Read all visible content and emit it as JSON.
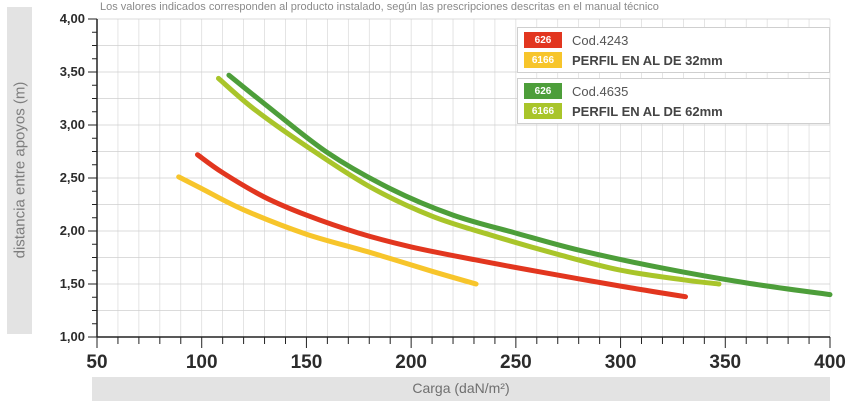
{
  "note": "Los valores indicados corresponden al producto instalado, según las prescripciones descritas en el manual técnico",
  "legend": [
    {
      "code": "Cod.4243",
      "profile": "PERFIL EN AL DE 32mm",
      "swatch_top": {
        "text": "626",
        "color": "#e2361f"
      },
      "swatch_bottom": {
        "text": "6166",
        "color": "#f7c52b"
      }
    },
    {
      "code": "Cod.4635",
      "profile": "PERFIL EN AL DE 62mm",
      "swatch_top": {
        "text": "626",
        "color": "#4d9e3a"
      },
      "swatch_bottom": {
        "text": "6166",
        "color": "#a9c52a"
      }
    }
  ],
  "chart_data": {
    "type": "line",
    "xlabel": "Carga (daN/m²)",
    "ylabel": "distancia entre apoyos (m)",
    "xlim": [
      50,
      400
    ],
    "ylim": [
      1.0,
      4.0
    ],
    "x_ticks": [
      "50",
      "100",
      "150",
      "200",
      "250",
      "300",
      "350",
      "400"
    ],
    "x_tick_values": [
      50,
      100,
      150,
      200,
      250,
      300,
      350,
      400
    ],
    "y_ticks": [
      "1,00",
      "1,50",
      "2,00",
      "2,50",
      "3,00",
      "3,50",
      "4,00"
    ],
    "y_tick_values": [
      1.0,
      1.5,
      2.0,
      2.5,
      3.0,
      3.5,
      4.0
    ],
    "grid": true,
    "legend_position": "top-right",
    "series": [
      {
        "color": "#e2361f",
        "x": [
          98,
          110,
          130,
          150,
          175,
          200,
          230,
          260,
          300,
          331
        ],
        "y": [
          2.72,
          2.55,
          2.32,
          2.15,
          1.98,
          1.85,
          1.73,
          1.62,
          1.48,
          1.38
        ]
      },
      {
        "color": "#f7c52b",
        "x": [
          89,
          100,
          120,
          150,
          180,
          210,
          231
        ],
        "y": [
          2.51,
          2.4,
          2.2,
          1.97,
          1.8,
          1.62,
          1.5
        ]
      },
      {
        "color": "#4d9e3a",
        "x": [
          113,
          130,
          160,
          190,
          220,
          250,
          280,
          320,
          360,
          400
        ],
        "y": [
          3.47,
          3.2,
          2.74,
          2.4,
          2.15,
          1.98,
          1.82,
          1.65,
          1.51,
          1.4
        ]
      },
      {
        "color": "#a9c52a",
        "x": [
          108,
          125,
          150,
          180,
          210,
          240,
          270,
          300,
          330,
          347
        ],
        "y": [
          3.44,
          3.15,
          2.8,
          2.42,
          2.14,
          1.95,
          1.78,
          1.63,
          1.54,
          1.5
        ]
      }
    ]
  }
}
